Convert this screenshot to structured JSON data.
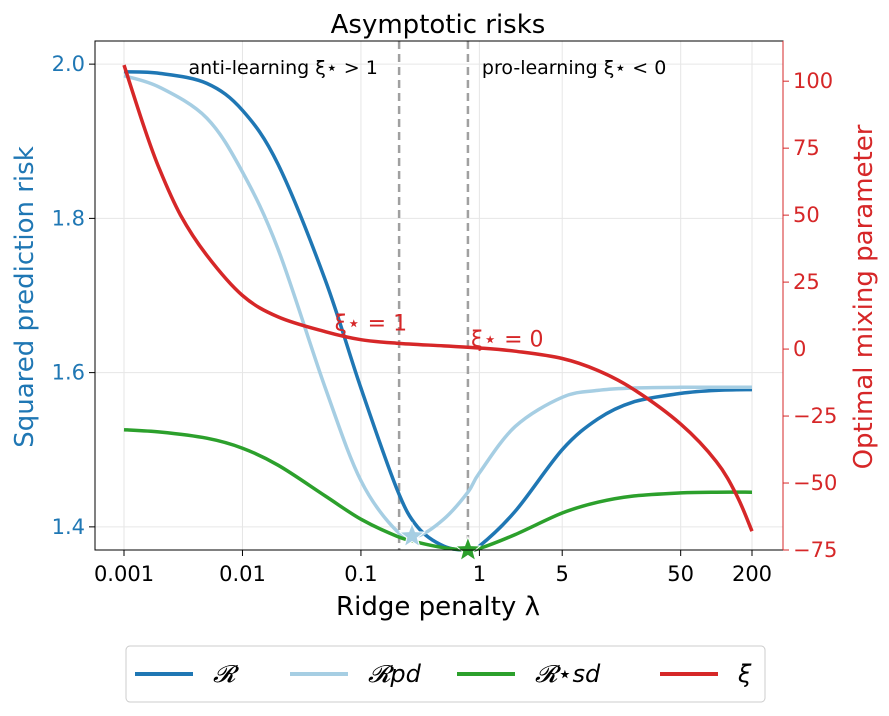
{
  "chart_data": {
    "type": "line",
    "title": "Asymptotic risks",
    "xlabel": "Ridge penalty λ",
    "ylabel_left": "Squared prediction risk",
    "ylabel_right": "Optimal mixing parameter",
    "x_scale": "log",
    "xlim": [
      0.001,
      200
    ],
    "ylim_left": [
      1.37,
      2.03
    ],
    "ylim_right": [
      -75,
      115
    ],
    "x_ticks": [
      {
        "value": 0.001,
        "label": "0.001"
      },
      {
        "value": 0.01,
        "label": "0.01"
      },
      {
        "value": 0.1,
        "label": "0.1"
      },
      {
        "value": 1,
        "label": "1"
      },
      {
        "value": 5,
        "label": "5"
      },
      {
        "value": 50,
        "label": "50"
      },
      {
        "value": 200,
        "label": "200"
      }
    ],
    "y_ticks_left": [
      {
        "value": 2.0,
        "label": "2.0"
      },
      {
        "value": 1.8,
        "label": "1.8"
      },
      {
        "value": 1.6,
        "label": "1.6"
      },
      {
        "value": 1.4,
        "label": "1.4"
      }
    ],
    "y_ticks_right": [
      {
        "value": 100,
        "label": "100"
      },
      {
        "value": 75,
        "label": "75"
      },
      {
        "value": 50,
        "label": "50"
      },
      {
        "value": 25,
        "label": "25"
      },
      {
        "value": 0,
        "label": "0"
      },
      {
        "value": -25,
        "label": "−25"
      },
      {
        "value": -50,
        "label": "−50"
      },
      {
        "value": -75,
        "label": "−75"
      }
    ],
    "grid": true,
    "legend_position": "bottom-outside",
    "vlines": [
      {
        "x": 0.21,
        "color": "#a0a0a0",
        "style": "dashed"
      },
      {
        "x": 0.8,
        "color": "#a0a0a0",
        "style": "dashed"
      }
    ],
    "region_labels": [
      {
        "text": "anti-learning ξ⋆ > 1",
        "x": 0.0035,
        "y": 1.995,
        "axis": "left"
      },
      {
        "text": "pro-learning ξ⋆ < 0",
        "x": 1.05,
        "y": 1.995,
        "axis": "left"
      }
    ],
    "annotations": [
      {
        "text": "ξ⋆ = 1",
        "x": 0.06,
        "y": 7,
        "axis": "right",
        "color": "#d62728"
      },
      {
        "text": "ξ⋆ = 0",
        "x": 0.85,
        "y": 1,
        "axis": "right",
        "color": "#d62728"
      }
    ],
    "series": [
      {
        "name": "𝓡",
        "axis": "left",
        "color": "#1f77b4",
        "x": [
          0.001,
          0.002,
          0.005,
          0.01,
          0.02,
          0.05,
          0.1,
          0.2,
          0.3,
          0.5,
          0.8,
          1,
          2,
          5,
          10,
          20,
          50,
          100,
          200
        ],
        "y": [
          1.99,
          1.988,
          1.975,
          1.94,
          1.87,
          1.72,
          1.58,
          1.45,
          1.4,
          1.375,
          1.37,
          1.375,
          1.42,
          1.5,
          1.54,
          1.562,
          1.573,
          1.577,
          1.578
        ]
      },
      {
        "name": "𝓡pd",
        "axis": "left",
        "color": "#a6cee3",
        "x": [
          0.001,
          0.002,
          0.005,
          0.01,
          0.02,
          0.05,
          0.1,
          0.2,
          0.3,
          0.5,
          0.8,
          1,
          2,
          5,
          10,
          20,
          50,
          100,
          200
        ],
        "y": [
          1.985,
          1.97,
          1.93,
          1.86,
          1.76,
          1.58,
          1.46,
          1.395,
          1.388,
          1.41,
          1.445,
          1.47,
          1.53,
          1.568,
          1.577,
          1.58,
          1.581,
          1.581,
          1.581
        ]
      },
      {
        "name": "𝓡⋆sd",
        "axis": "left",
        "color": "#2ca02c",
        "x": [
          0.001,
          0.002,
          0.005,
          0.01,
          0.02,
          0.05,
          0.1,
          0.2,
          0.3,
          0.5,
          0.8,
          1,
          2,
          5,
          10,
          20,
          50,
          100,
          200
        ],
        "y": [
          1.526,
          1.523,
          1.515,
          1.502,
          1.48,
          1.44,
          1.41,
          1.388,
          1.38,
          1.373,
          1.37,
          1.372,
          1.39,
          1.418,
          1.432,
          1.44,
          1.444,
          1.445,
          1.445
        ]
      },
      {
        "name": "ξ",
        "axis": "right",
        "color": "#d62728",
        "x": [
          0.001,
          0.0015,
          0.002,
          0.003,
          0.005,
          0.01,
          0.02,
          0.05,
          0.1,
          0.2,
          0.5,
          1,
          2,
          5,
          10,
          20,
          50,
          100,
          150,
          200
        ],
        "y": [
          106,
          82,
          67,
          50,
          35,
          20,
          12,
          6.5,
          3.5,
          2.2,
          1.2,
          0.4,
          -0.8,
          -3.5,
          -8,
          -15,
          -28,
          -42,
          -55,
          -68
        ]
      }
    ],
    "markers": [
      {
        "series": "𝓡pd",
        "x": 0.27,
        "y": 1.388,
        "shape": "star",
        "color": "#a6cee3"
      },
      {
        "series": "𝓡⋆sd",
        "x": 0.8,
        "y": 1.37,
        "shape": "star",
        "color": "#2ca02c"
      }
    ]
  }
}
